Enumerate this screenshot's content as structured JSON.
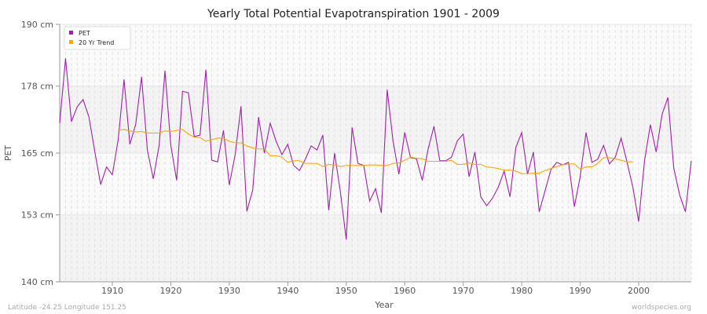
{
  "chart_data": {
    "type": "line",
    "title": "Yearly Total Potential Evapotranspiration 1901 - 2009",
    "xlabel": "Year",
    "ylabel": "PET",
    "ylim": [
      140,
      190
    ],
    "xlim": [
      1901,
      2009
    ],
    "yticks": [
      {
        "v": 140,
        "label": "140 cm"
      },
      {
        "v": 153,
        "label": "153 cm"
      },
      {
        "v": 165,
        "label": "165 cm"
      },
      {
        "v": 178,
        "label": "178 cm"
      },
      {
        "v": 190,
        "label": "190 cm"
      }
    ],
    "xticks": [
      1910,
      1920,
      1930,
      1940,
      1950,
      1960,
      1970,
      1980,
      1990,
      2000
    ],
    "legend_position": "top-left",
    "series": [
      {
        "name": "PET",
        "color": "#a020a8",
        "start": 1901,
        "values": [
          170.8,
          183.4,
          171.1,
          174.0,
          175.4,
          172.0,
          165.3,
          158.9,
          162.3,
          160.8,
          167.6,
          179.3,
          166.7,
          170.6,
          179.8,
          165.5,
          160.0,
          166.5,
          181.0,
          166.5,
          159.7,
          177.0,
          176.7,
          168.2,
          168.5,
          181.2,
          163.6,
          163.3,
          169.4,
          158.8,
          164.7,
          174.1,
          153.7,
          157.8,
          172.0,
          165.0,
          170.8,
          167.3,
          164.7,
          166.7,
          162.6,
          161.6,
          163.8,
          166.4,
          165.6,
          168.5,
          153.9,
          165.0,
          157.4,
          148.2,
          170.0,
          163.0,
          162.6,
          155.7,
          158.1,
          153.4,
          177.3,
          167.3,
          160.9,
          169.0,
          164.1,
          163.9,
          159.7,
          165.8,
          170.2,
          163.5,
          163.5,
          164.2,
          167.4,
          168.7,
          160.4,
          165.2,
          156.5,
          154.8,
          156.2,
          158.4,
          161.5,
          156.5,
          166.1,
          169.0,
          160.9,
          165.2,
          153.6,
          157.7,
          161.8,
          163.2,
          162.7,
          163.2,
          154.6,
          160.4,
          169.0,
          163.2,
          163.8,
          166.5,
          162.9,
          164.2,
          167.9,
          163.3,
          158.4,
          151.7,
          163.5,
          170.5,
          165.2,
          172.5,
          175.8,
          162.1,
          156.9,
          153.6,
          163.5
        ]
      },
      {
        "name": "20 Yr Trend",
        "color": "#ffa500",
        "start": 1911,
        "values": [
          169.4,
          169.6,
          169.3,
          169.1,
          169.2,
          168.9,
          168.9,
          168.9,
          169.3,
          169.2,
          169.4,
          169.6,
          168.7,
          168.1,
          168.0,
          167.3,
          167.6,
          167.9,
          167.9,
          167.3,
          167.0,
          167.0,
          166.4,
          166.0,
          165.8,
          165.8,
          164.5,
          164.5,
          164.2,
          163.2,
          163.5,
          163.5,
          163.0,
          163.0,
          163.0,
          162.4,
          162.8,
          162.7,
          162.4,
          162.6,
          162.6,
          162.6,
          162.6,
          162.7,
          162.7,
          162.6,
          162.6,
          163.0,
          163.1,
          163.6,
          164.2,
          164.0,
          163.9,
          163.4,
          163.4,
          163.4,
          163.4,
          163.6,
          162.8,
          162.8,
          163.1,
          162.8,
          162.8,
          162.3,
          162.2,
          162.0,
          161.7,
          161.7,
          161.5,
          161.0,
          161.0,
          161.1,
          161.1,
          161.6,
          162.0,
          162.4,
          162.7,
          162.9,
          162.9,
          161.9,
          162.3,
          162.3,
          163.0,
          164.1,
          164.1,
          163.9,
          163.6,
          163.3,
          163.3
        ]
      }
    ]
  },
  "footer": {
    "location": "Latitude -24.25 Longitude 151.25",
    "credit": "worldspecies.org"
  }
}
